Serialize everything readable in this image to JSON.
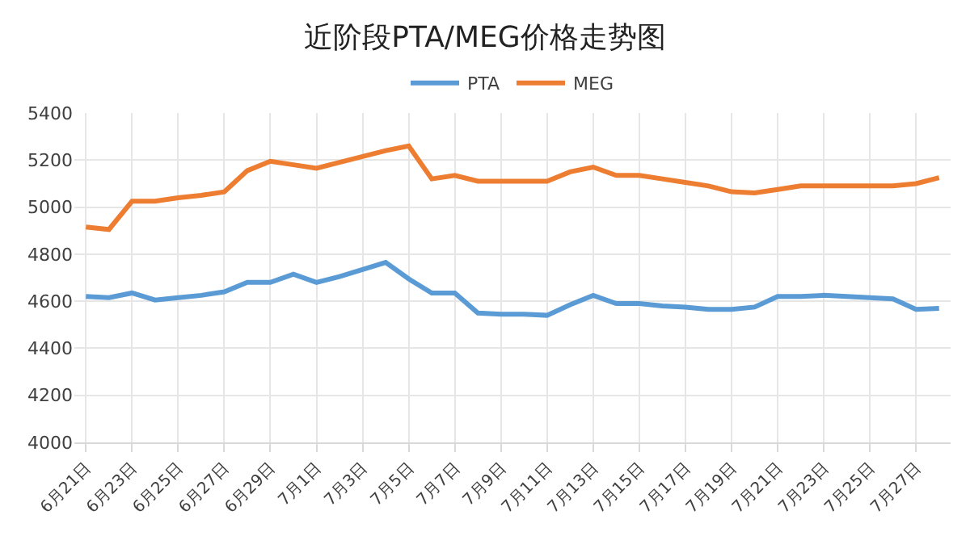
{
  "chart_data": {
    "type": "line",
    "title": "近阶段PTA/MEG价格走势图",
    "categories": [
      "6月21日",
      null,
      "6月23日",
      null,
      "6月25日",
      null,
      "6月27日",
      null,
      "6月29日",
      null,
      "7月1日",
      null,
      "7月3日",
      null,
      "7月5日",
      null,
      "7月7日",
      null,
      "7月9日",
      null,
      "7月11日",
      null,
      "7月13日",
      null,
      "7月15日",
      null,
      "7月17日",
      null,
      "7月19日",
      null,
      "7月21日",
      null,
      "7月23日",
      null,
      "7月25日",
      null,
      "7月27日",
      null
    ],
    "series": [
      {
        "name": "PTA",
        "color": "#5b9bd5",
        "values": [
          4620,
          4615,
          4635,
          4605,
          4615,
          4625,
          4640,
          4680,
          4680,
          4715,
          4680,
          4705,
          4735,
          4765,
          4695,
          4635,
          4635,
          4550,
          4545,
          4545,
          4540,
          4585,
          4625,
          4590,
          4590,
          4580,
          4575,
          4565,
          4565,
          4575,
          4620,
          4620,
          4625,
          4620,
          4615,
          4610,
          4565,
          4570
        ]
      },
      {
        "name": "MEG",
        "color": "#ed7d31",
        "values": [
          4915,
          4905,
          5025,
          5025,
          5040,
          5050,
          5065,
          5155,
          5195,
          5180,
          5165,
          5190,
          5215,
          5240,
          5260,
          5120,
          5135,
          5110,
          5110,
          5110,
          5110,
          5150,
          5170,
          5135,
          5135,
          5120,
          5105,
          5090,
          5065,
          5060,
          5075,
          5090,
          5090,
          5090,
          5090,
          5090,
          5100,
          5125
        ]
      }
    ],
    "ylim": [
      4000,
      5400
    ],
    "yticks": [
      4000,
      4200,
      4400,
      4600,
      4800,
      5000,
      5200,
      5400
    ],
    "grid": true,
    "legend": "top",
    "marker": "none",
    "line_style": "solid"
  }
}
